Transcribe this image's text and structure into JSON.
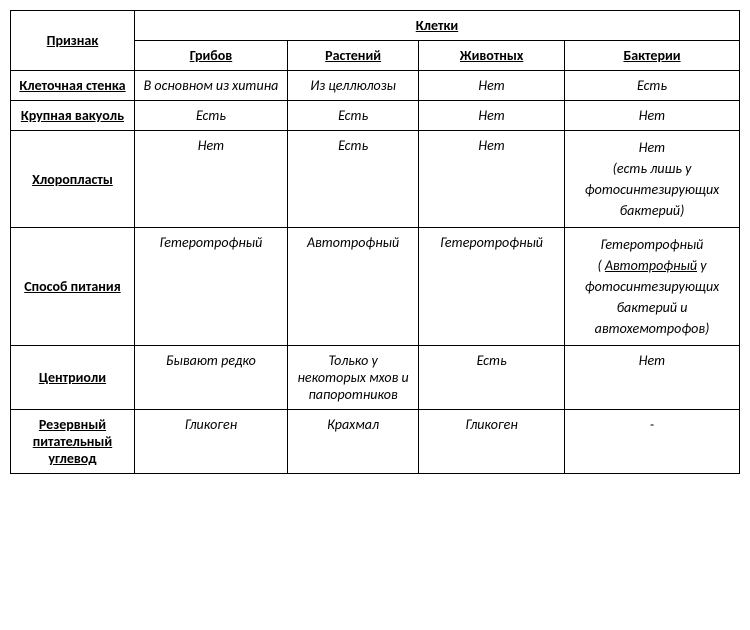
{
  "table": {
    "header": {
      "corner": "Признак",
      "group": "Клетки",
      "cols": [
        "Грибов",
        "Растений",
        "Животных",
        "Бактерии"
      ]
    },
    "rows": [
      {
        "label": "Клеточная стенка",
        "cells": [
          "В основном из хитина",
          "Из целлюлозы",
          "Нет",
          "Есть"
        ]
      },
      {
        "label": "Крупная вакуоль",
        "cells": [
          "Есть",
          "Есть",
          "Нет",
          "Нет"
        ]
      },
      {
        "label": "Хлоропласты",
        "cells": [
          "Нет",
          "Есть",
          "Нет",
          ""
        ],
        "special4": {
          "line1": "Нет",
          "line2": "(есть лишь у фотосинтезирующих бактерий)"
        }
      },
      {
        "label": "Способ питания",
        "cells": [
          "Гетеротрофный",
          "Автотрофный",
          "Гетеротрофный",
          ""
        ],
        "special4b": {
          "line1": "Гетеротрофный",
          "line2a": "( ",
          "line2u": "Автотрофный",
          "line2b": " у фотосинтезирующих бактерий и автохемотрофов)"
        }
      },
      {
        "label": "Центриоли",
        "cells": [
          "Бывают редко",
          "Только у некоторых мхов и папоротников",
          "Есть",
          "Нет"
        ]
      },
      {
        "label": "Резервный питательный углевод",
        "cells": [
          "Гликоген",
          "Крахмал",
          "Гликоген",
          "-"
        ]
      }
    ]
  },
  "styles": {
    "border_color": "#000000",
    "background": "#ffffff",
    "text_color": "#000000",
    "font_size": 14,
    "italic_cells": true
  }
}
